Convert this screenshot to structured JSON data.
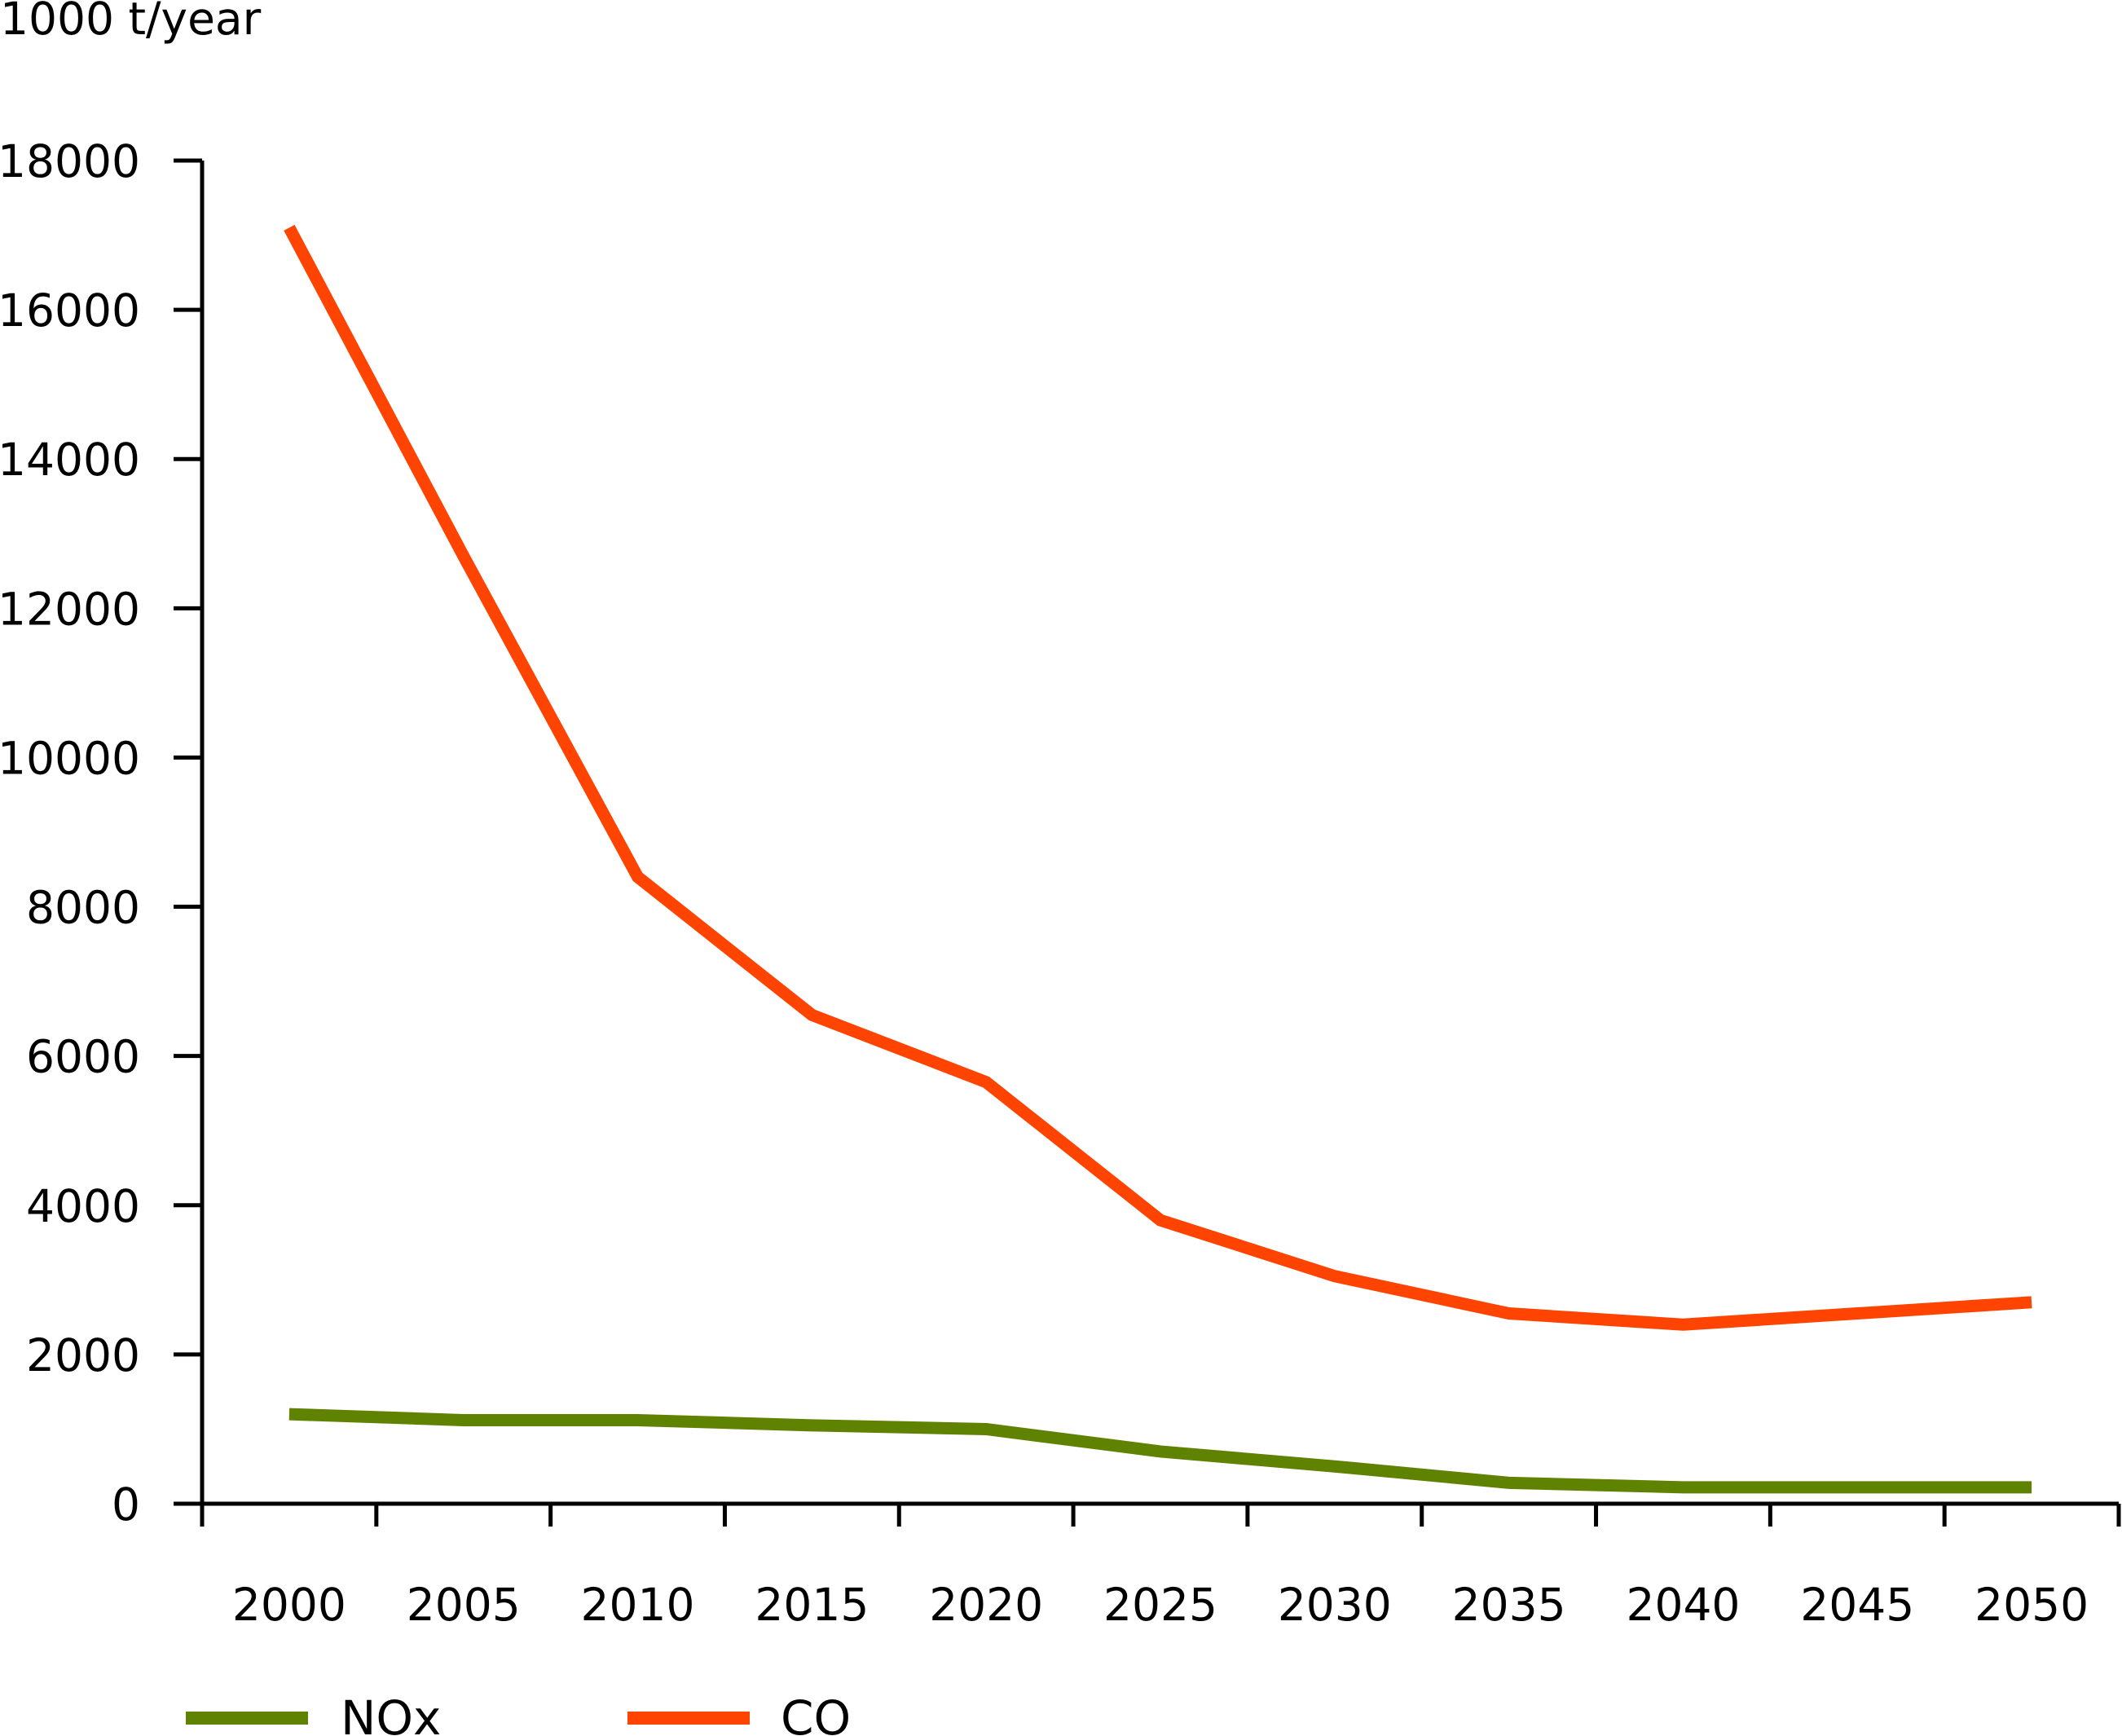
{
  "chart_data": {
    "type": "line",
    "ylabel": "1000 t/year",
    "ylim": [
      0,
      18000
    ],
    "y_ticks": [
      "0",
      "2000",
      "4000",
      "6000",
      "8000",
      "10000",
      "12000",
      "14000",
      "16000",
      "18000"
    ],
    "x_tick_labels": [
      "2000",
      "2005",
      "2010",
      "2015",
      "2020",
      "2025",
      "2030",
      "2035",
      "2040",
      "2045",
      "2050"
    ],
    "grid": false,
    "legend_position": "bottom-left",
    "series": [
      {
        "name": "NOx",
        "color": "#5f8200",
        "values": [
          1200,
          1120,
          1120,
          1050,
          1000,
          700,
          500,
          280,
          220,
          220,
          220
        ]
      },
      {
        "name": "CO",
        "color": "#ff4300",
        "values": [
          17100,
          12700,
          8400,
          6550,
          5650,
          3800,
          3050,
          2550,
          2400,
          2550,
          2700
        ]
      }
    ]
  }
}
